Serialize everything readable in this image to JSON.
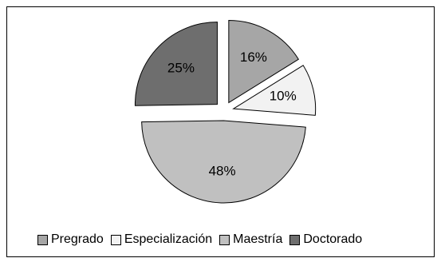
{
  "chart_data": {
    "type": "pie",
    "title": "",
    "slices": [
      {
        "label": "Pregrado",
        "value": 16,
        "value_label": "16%",
        "color": "#a6a6a6",
        "exploded": true
      },
      {
        "label": "Especialización",
        "value": 10,
        "value_label": "10%",
        "color": "#f2f2f2",
        "exploded": true
      },
      {
        "label": "Maestría",
        "value": 48,
        "value_label": "48%",
        "color": "#c0c0c0",
        "exploded": true
      },
      {
        "label": "Doctorado",
        "value": 25,
        "value_label": "25%",
        "color": "#6e6e6e",
        "exploded": true
      }
    ],
    "legend": {
      "position": "bottom",
      "items": [
        "Pregrado",
        "Especialización",
        "Maestría",
        "Doctorado"
      ]
    }
  }
}
